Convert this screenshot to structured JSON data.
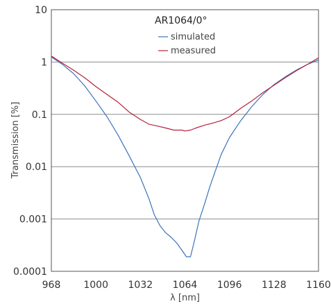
{
  "chart_data": {
    "type": "line",
    "title": "",
    "xlabel": "λ [nm]",
    "ylabel": "Transmission [%]",
    "xlim": [
      968,
      1160
    ],
    "ylim": [
      0.0001,
      10
    ],
    "y_scale": "log",
    "grid": "horizontal",
    "x_ticks": [
      "968",
      "1000",
      "1032",
      "1064",
      "1096",
      "1128",
      "1160"
    ],
    "y_ticks": [
      "10",
      "1",
      "0.1",
      "0.01",
      "0.001",
      "0.0001"
    ],
    "legend": {
      "title": "AR1064/0°",
      "placement": "top-center"
    },
    "series": [
      {
        "name": "simulated",
        "color": "#3b73b9",
        "x": [
          968,
          976,
          984,
          992,
          1000,
          1008,
          1016,
          1024,
          1032,
          1038,
          1042,
          1046,
          1050,
          1054,
          1058,
          1062,
          1065,
          1068,
          1071,
          1074,
          1078,
          1082,
          1086,
          1090,
          1096,
          1104,
          1112,
          1120,
          1128,
          1136,
          1144,
          1152,
          1160
        ],
        "y": [
          1.25,
          0.9,
          0.6,
          0.35,
          0.18,
          0.09,
          0.04,
          0.016,
          0.0062,
          0.0025,
          0.0012,
          0.00075,
          0.00055,
          0.00045,
          0.00035,
          0.00025,
          0.00019,
          0.00019,
          0.0004,
          0.0009,
          0.0019,
          0.0042,
          0.0085,
          0.017,
          0.036,
          0.075,
          0.14,
          0.24,
          0.37,
          0.52,
          0.7,
          0.9,
          1.1
        ]
      },
      {
        "name": "measured",
        "color": "#b5203a",
        "x": [
          968,
          976,
          984,
          992,
          1000,
          1008,
          1016,
          1024,
          1032,
          1038,
          1044,
          1050,
          1056,
          1062,
          1064,
          1068,
          1072,
          1078,
          1084,
          1090,
          1096,
          1104,
          1112,
          1120,
          1128,
          1136,
          1144,
          1152,
          1160
        ],
        "y": [
          1.3,
          0.95,
          0.7,
          0.5,
          0.34,
          0.24,
          0.17,
          0.11,
          0.08,
          0.065,
          0.06,
          0.055,
          0.05,
          0.05,
          0.048,
          0.05,
          0.055,
          0.062,
          0.068,
          0.076,
          0.09,
          0.13,
          0.18,
          0.26,
          0.36,
          0.5,
          0.68,
          0.9,
          1.2
        ]
      }
    ]
  }
}
